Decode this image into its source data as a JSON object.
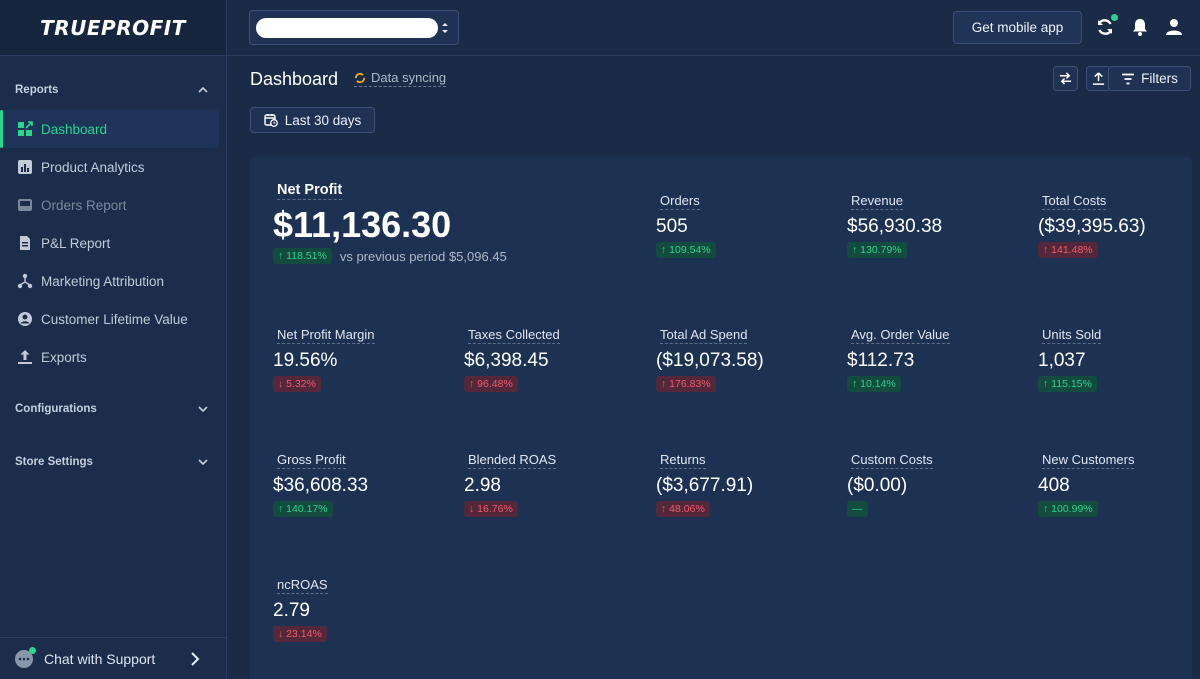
{
  "brand": {
    "logo_main": "TRUEPROFIT",
    "accent": "#2bd48f"
  },
  "sidebar": {
    "reports_label": "Reports",
    "items": [
      {
        "label": "Dashboard",
        "icon": "dashboard-icon",
        "active": true
      },
      {
        "label": "Product Analytics",
        "icon": "bar-chart-icon"
      },
      {
        "label": "Orders Report",
        "icon": "inbox-icon"
      },
      {
        "label": "P&L Report",
        "icon": "document-icon"
      },
      {
        "label": "Marketing Attribution",
        "icon": "network-icon"
      },
      {
        "label": "Customer Lifetime Value",
        "icon": "user-circle-icon"
      },
      {
        "label": "Exports",
        "icon": "upload-icon"
      }
    ],
    "configurations_label": "Configurations",
    "store_settings_label": "Store Settings",
    "support_label": "Chat with Support"
  },
  "topbar": {
    "mobile_button": "Get mobile app"
  },
  "header": {
    "title": "Dashboard",
    "sync_status": "Data syncing",
    "filters_label": "Filters",
    "date_range": "Last 30 days"
  },
  "hero": {
    "label": "Net Profit",
    "value": "$11,136.30",
    "change": "↑ 118.51%",
    "vs_label": "vs previous period $5,096.45"
  },
  "metrics": [
    {
      "label": "Orders",
      "value": "505",
      "change": "↑ 109.54%"
    },
    {
      "label": "Revenue",
      "value": "$56,930.38",
      "change": "↑ 130.79%"
    },
    {
      "label": "Total Costs",
      "value": "($39,395.63)",
      "change": "↑ 141.48%"
    },
    {
      "label": "Net Profit Margin",
      "value": "19.56%",
      "change": "↓ 5.32%"
    },
    {
      "label": "Taxes Collected",
      "value": "$6,398.45",
      "change": "↑ 96.48%"
    },
    {
      "label": "Total Ad Spend",
      "value": "($19,073.58)",
      "change": "↑ 176.83%"
    },
    {
      "label": "Avg. Order Value",
      "value": "$112.73",
      "change": "↑ 10.14%"
    },
    {
      "label": "Units Sold",
      "value": "1,037",
      "change": "↑ 115.15%"
    },
    {
      "label": "Gross Profit",
      "value": "$36,608.33",
      "change": "↑ 140.17%"
    },
    {
      "label": "Blended ROAS",
      "value": "2.98",
      "change": "↓ 16.76%"
    },
    {
      "label": "Returns",
      "value": "($3,677.91)",
      "change": "↑ 48.06%"
    },
    {
      "label": "Custom Costs",
      "value": "($0.00)",
      "change": "—"
    },
    {
      "label": "New Customers",
      "value": "408",
      "change": "↑ 100.99%"
    },
    {
      "label": "ncROAS",
      "value": "2.79",
      "change": "↓ 23.14%"
    }
  ]
}
